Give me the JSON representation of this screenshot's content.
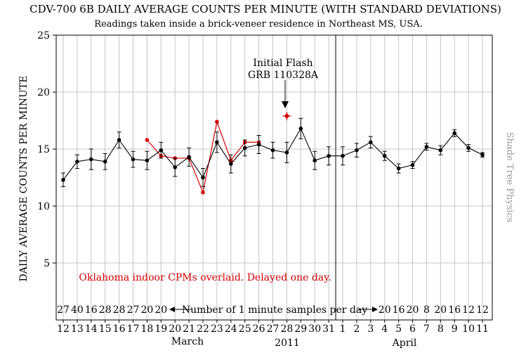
{
  "chart_data": {
    "type": "line",
    "title": "CDV-700 6B DAILY AVERAGE COUNTS PER MINUTE (WITH STANDARD DEVIATIONS)",
    "subtitle": "Readings taken inside a brick-veneer residence in Northeast MS, USA.",
    "ylabel": "DAILY AVERAGE COUNTS PER MINUTE",
    "year_label": "2011",
    "month_labels": [
      "March",
      "April"
    ],
    "watermark": "Shade Tree Physics",
    "ylim": [
      0,
      25
    ],
    "yticks": [
      5,
      10,
      15,
      20,
      25
    ],
    "grid": true,
    "x": [
      "12",
      "13",
      "14",
      "15",
      "16",
      "17",
      "18",
      "19",
      "20",
      "21",
      "22",
      "23",
      "24",
      "25",
      "26",
      "27",
      "28",
      "29",
      "30",
      "31",
      "1",
      "2",
      "3",
      "4",
      "5",
      "6",
      "7",
      "8",
      "9",
      "10",
      "11"
    ],
    "series": [
      {
        "color": "#000000",
        "values": [
          12.3,
          13.9,
          14.1,
          13.9,
          15.8,
          14.1,
          14.0,
          14.9,
          13.4,
          14.3,
          12.5,
          15.6,
          13.7,
          15.1,
          15.4,
          14.9,
          14.7,
          16.8,
          14.0,
          14.4,
          14.4,
          14.9,
          15.6,
          14.4,
          13.3,
          13.6,
          15.2,
          14.9,
          16.4,
          15.1,
          14.5
        ],
        "std_dev": [
          0.6,
          0.6,
          0.9,
          0.7,
          0.7,
          0.7,
          0.8,
          0.7,
          0.8,
          0.8,
          0.8,
          0.9,
          0.8,
          0.7,
          0.8,
          0.7,
          0.9,
          0.9,
          0.8,
          0.8,
          0.8,
          0.6,
          0.5,
          0.4,
          0.4,
          0.3,
          0.3,
          0.4,
          0.3,
          0.3,
          0.2
        ]
      },
      {
        "color": "#d40000",
        "x": [
          "18",
          "19",
          "20",
          "21",
          "22",
          "23",
          "24",
          "25",
          "26"
        ],
        "values": [
          15.8,
          14.4,
          14.2,
          14.2,
          11.2,
          17.4,
          14.0,
          15.6,
          15.6
        ]
      }
    ],
    "samples_counts": {
      "left": [
        "27",
        "40",
        "16",
        "28",
        "28",
        "27",
        "20",
        "20"
      ],
      "right": [
        "20",
        "16",
        "20",
        "8",
        "20",
        "16",
        "12",
        "12"
      ],
      "label": "Number of 1 minute samples per day"
    },
    "annotations": [
      {
        "text_lines": [
          "Initial Flash",
          "GRB 110328A"
        ],
        "x": "28",
        "y": 17.9,
        "color": "#d40000"
      },
      {
        "text": "Oklahoma indoor CPMs overlaid. Delayed one day.",
        "color": "#d40000"
      }
    ]
  }
}
